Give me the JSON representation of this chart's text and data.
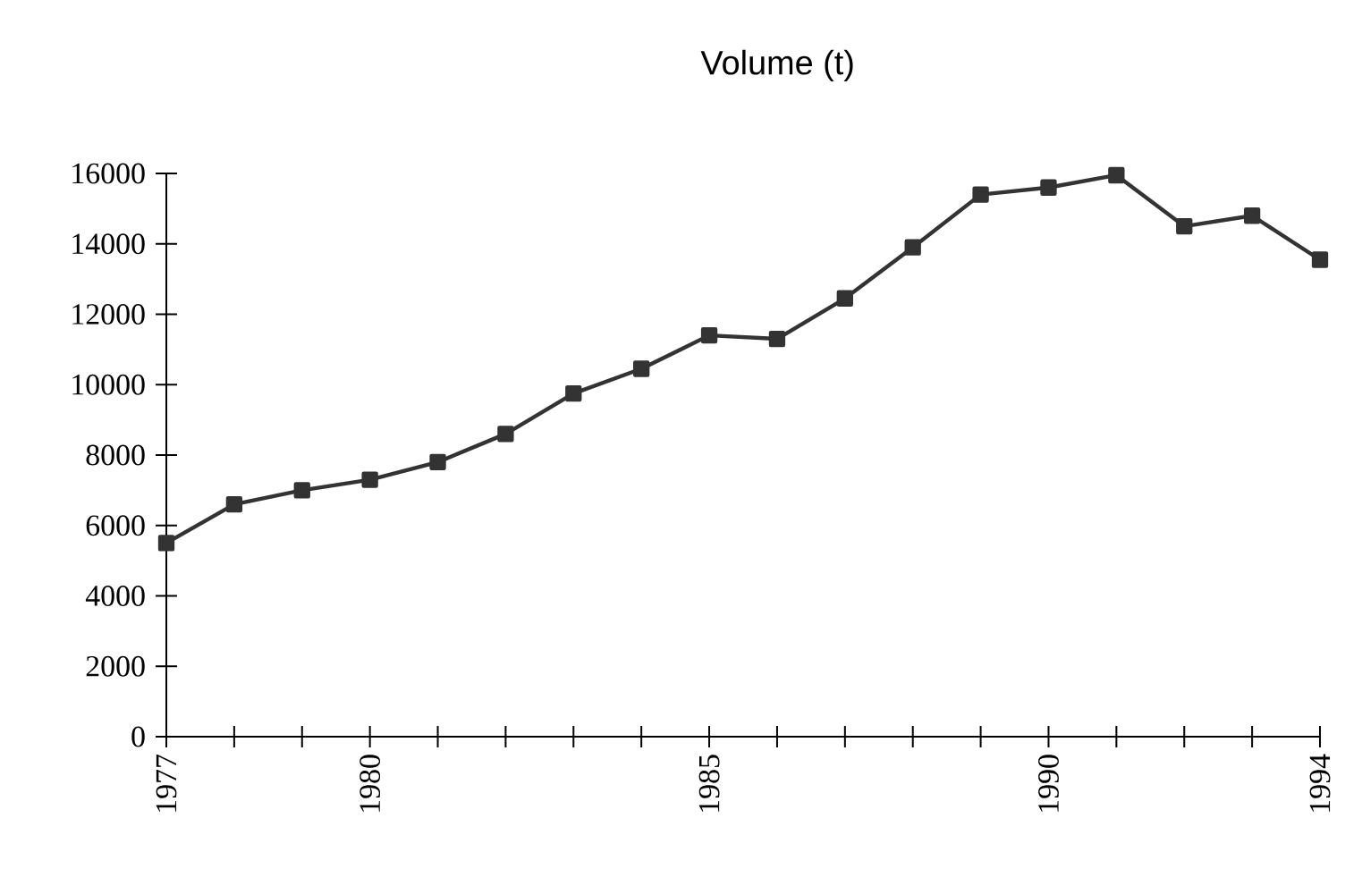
{
  "chart_data": {
    "type": "line",
    "title": "Volume  (t)",
    "x": [
      1977,
      1978,
      1979,
      1980,
      1981,
      1982,
      1983,
      1984,
      1985,
      1986,
      1987,
      1988,
      1989,
      1990,
      1991,
      1992,
      1993,
      1994
    ],
    "series": [
      {
        "color": "#333333",
        "values": [
          5500,
          6600,
          7000,
          7300,
          7800,
          8600,
          9750,
          10450,
          11400,
          11300,
          12450,
          13900,
          15400,
          15600,
          15950,
          14500,
          14800,
          13550
        ]
      }
    ],
    "xlim": [
      1977,
      1994
    ],
    "xticks": [
      1977,
      {
        "value": 1978,
        "label": null
      },
      {
        "value": 1979,
        "label": null
      },
      1980,
      {
        "value": 1981,
        "label": null
      },
      {
        "value": 1982,
        "label": null
      },
      {
        "value": 1983,
        "label": null
      },
      {
        "value": 1984,
        "label": null
      },
      1985,
      {
        "value": 1986,
        "label": null
      },
      {
        "value": 1987,
        "label": null
      },
      {
        "value": 1988,
        "label": null
      },
      {
        "value": 1989,
        "label": null
      },
      1990,
      {
        "value": 1991,
        "label": null
      },
      {
        "value": 1992,
        "label": null
      },
      {
        "value": 1993,
        "label": null
      },
      1994
    ],
    "ylim": [
      0,
      16000
    ],
    "yticks": [
      0,
      2000,
      4000,
      6000,
      8000,
      10000,
      12000,
      14000,
      16000
    ],
    "grid": false,
    "marker": "square",
    "line_style": "solid"
  }
}
